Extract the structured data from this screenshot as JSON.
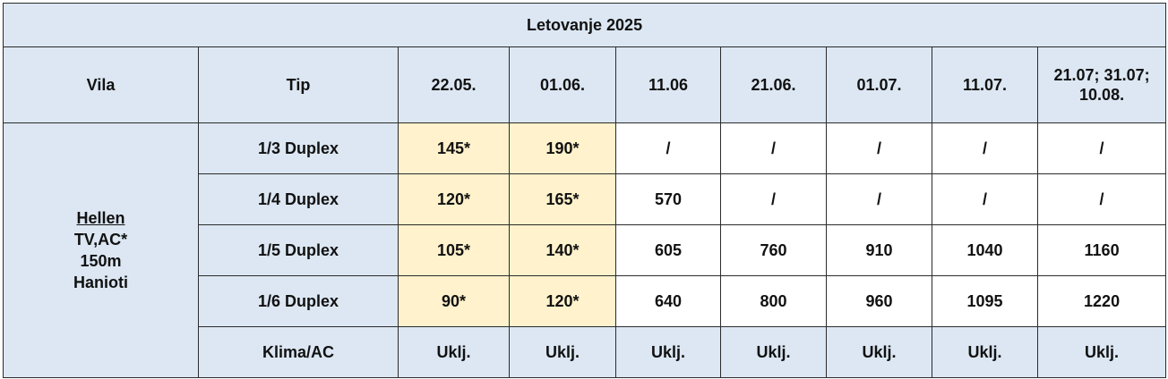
{
  "title": "Letovanje 2025",
  "headers": {
    "vila": "Vila",
    "tip": "Tip",
    "dates": [
      "22.05.",
      "01.06.",
      "11.06",
      "21.06.",
      "01.07.",
      "11.07.",
      "21.07; 31.07;\n10.08."
    ]
  },
  "villa": {
    "name": "Hellen",
    "amenities": "TV,AC*",
    "distance": "150m",
    "location": "Hanioti"
  },
  "rows": [
    {
      "type": "1/3 Duplex",
      "prices": [
        "145*",
        "190*",
        "/",
        "/",
        "/",
        "/",
        "/"
      ]
    },
    {
      "type": "1/4 Duplex",
      "prices": [
        "120*",
        "165*",
        "570",
        "/",
        "/",
        "/",
        "/"
      ]
    },
    {
      "type": "1/5 Duplex",
      "prices": [
        "105*",
        "140*",
        "605",
        "760",
        "910",
        "1040",
        "1160"
      ]
    },
    {
      "type": "1/6 Duplex",
      "prices": [
        "90*",
        "120*",
        "640",
        "800",
        "960",
        "1095",
        "1220"
      ]
    },
    {
      "type": "Klima/AC",
      "prices": [
        "Uklj.",
        "Uklj.",
        "Uklj.",
        "Uklj.",
        "Uklj.",
        "Uklj.",
        "Uklj."
      ]
    }
  ],
  "colors": {
    "header_bg": "#dce7f3",
    "price_bg": "#fff2cc",
    "border": "#2b2b2b"
  }
}
